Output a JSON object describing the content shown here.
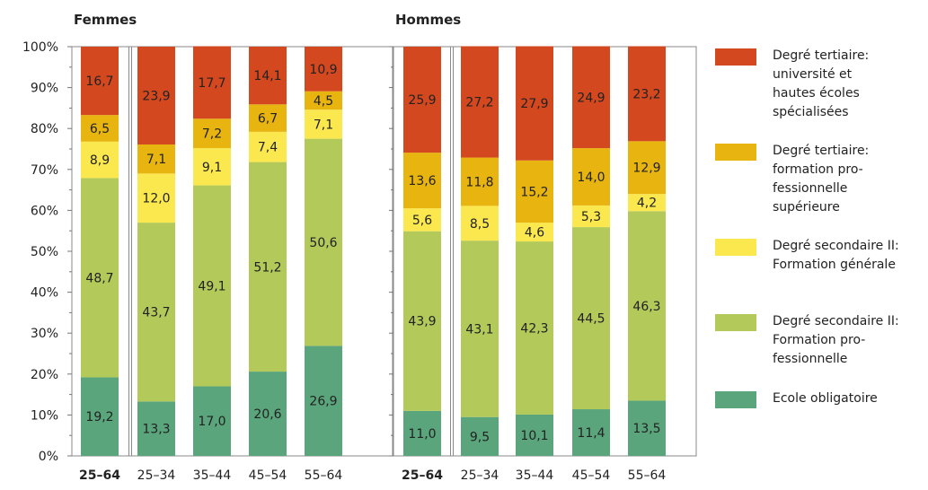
{
  "chart_data": {
    "type": "bar",
    "stacked": true,
    "y_axis": {
      "ticks": [
        "0%",
        "10%",
        "20%",
        "30%",
        "40%",
        "50%",
        "60%",
        "70%",
        "80%",
        "90%",
        "100%"
      ],
      "ylim": [
        0,
        100
      ],
      "minor_ticks": true
    },
    "legend_position": "right",
    "segments": [
      {
        "key": "obl",
        "label": "Ecole obligatoire",
        "color": "#5aa57c"
      },
      {
        "key": "sec_pro",
        "label": "Degré secondaire II:\nFormation pro-\nfessionnelle",
        "color": "#b3c95a"
      },
      {
        "key": "sec_gen",
        "label": "Degré secondaire II:\nFormation générale",
        "color": "#fae84e"
      },
      {
        "key": "ter_pro",
        "label": "Degré tertiaire:\nformation pro-\nfessionnelle\nsupérieure",
        "color": "#e8b410"
      },
      {
        "key": "ter_uni",
        "label": "Degré tertiaire:\nuniversité et\nhautes écoles\nspécialisées",
        "color": "#d3481e"
      }
    ],
    "legend_order": [
      "ter_uni",
      "ter_pro",
      "sec_gen",
      "sec_pro",
      "obl"
    ],
    "panels": [
      {
        "title": "Femmes",
        "categories": [
          "25–64",
          "25–34",
          "35–44",
          "45–54",
          "55–64"
        ],
        "bold_categories": [
          "25–64"
        ],
        "series": [
          {
            "key": "obl",
            "values": [
              19.2,
              13.3,
              17.0,
              20.6,
              26.9
            ],
            "labels": [
              "19,2",
              "13,3",
              "17,0",
              "20,6",
              "26,9"
            ]
          },
          {
            "key": "sec_pro",
            "values": [
              48.7,
              43.7,
              49.1,
              51.2,
              50.6
            ],
            "labels": [
              "48,7",
              "43,7",
              "49,1",
              "51,2",
              "50,6"
            ]
          },
          {
            "key": "sec_gen",
            "values": [
              8.9,
              12.0,
              9.1,
              7.4,
              7.1
            ],
            "labels": [
              "8,9",
              "12,0",
              "9,1",
              "7,4",
              "7,1"
            ]
          },
          {
            "key": "ter_pro",
            "values": [
              6.5,
              7.1,
              7.2,
              6.7,
              4.5
            ],
            "labels": [
              "6,5",
              "7,1",
              "7,2",
              "6,7",
              "4,5"
            ]
          },
          {
            "key": "ter_uni",
            "values": [
              16.7,
              23.9,
              17.7,
              14.1,
              10.9
            ],
            "labels": [
              "16,7",
              "23,9",
              "17,7",
              "14,1",
              "10,9"
            ]
          }
        ]
      },
      {
        "title": "Hommes",
        "categories": [
          "25–64",
          "25–34",
          "35–44",
          "45–54",
          "55–64"
        ],
        "bold_categories": [
          "25–64"
        ],
        "series": [
          {
            "key": "obl",
            "values": [
              11.0,
              9.5,
              10.1,
              11.4,
              13.5
            ],
            "labels": [
              "11,0",
              "9,5",
              "10,1",
              "11,4",
              "13,5"
            ]
          },
          {
            "key": "sec_pro",
            "values": [
              43.9,
              43.1,
              42.3,
              44.5,
              46.3
            ],
            "labels": [
              "43,9",
              "43,1",
              "42,3",
              "44,5",
              "46,3"
            ]
          },
          {
            "key": "sec_gen",
            "values": [
              5.6,
              8.5,
              4.6,
              5.3,
              4.2
            ],
            "labels": [
              "5,6",
              "8,5",
              "4,6",
              "5,3",
              "4,2"
            ]
          },
          {
            "key": "ter_pro",
            "values": [
              13.6,
              11.8,
              15.2,
              14.0,
              12.9
            ],
            "labels": [
              "13,6",
              "11,8",
              "15,2",
              "14,0",
              "12,9"
            ]
          },
          {
            "key": "ter_uni",
            "values": [
              25.9,
              27.2,
              27.9,
              24.9,
              23.2
            ],
            "labels": [
              "25,9",
              "27,2",
              "27,9",
              "24,9",
              "23,2"
            ]
          }
        ]
      }
    ]
  }
}
